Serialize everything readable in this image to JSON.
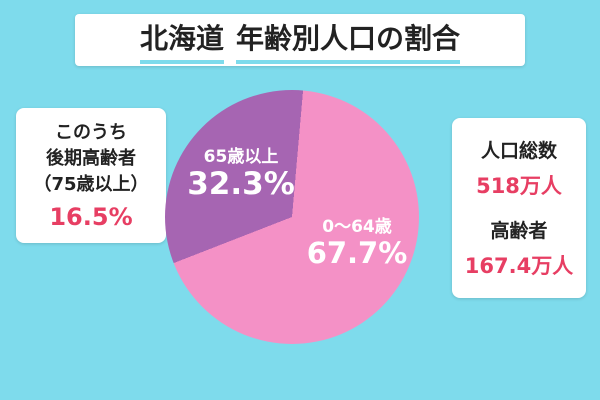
{
  "title": {
    "full": "北海道 年齢別人口の割合",
    "part1": "北海道",
    "part2": "年齢別人口の割合"
  },
  "chart_data": {
    "type": "pie",
    "title": "北海道 年齢別人口の割合",
    "unit": "%",
    "rotation_deg": 5,
    "legend_position": "none",
    "slices": [
      {
        "label": "0〜64歳",
        "value": 67.7,
        "display": "67.7%",
        "color": "#f491c6"
      },
      {
        "label": "65歳以上",
        "value": 32.3,
        "display": "32.3%",
        "color": "#a665b2"
      }
    ]
  },
  "left_callout": {
    "line1": "このうち",
    "line2": "後期高齢者",
    "line3": "（75歳以上）",
    "value": "16.5%"
  },
  "right_panel": {
    "rows": [
      {
        "label": "人口総数",
        "value": "518万人"
      },
      {
        "label": "高齢者",
        "value": "167.4万人"
      }
    ]
  },
  "colors": {
    "background": "#7edbec",
    "underline": "#7edbec",
    "accent_red": "#e73e63",
    "pie_pink": "#f491c6",
    "pie_purple": "#a665b2",
    "box_white": "#ffffff",
    "text_dark": "#222222"
  }
}
